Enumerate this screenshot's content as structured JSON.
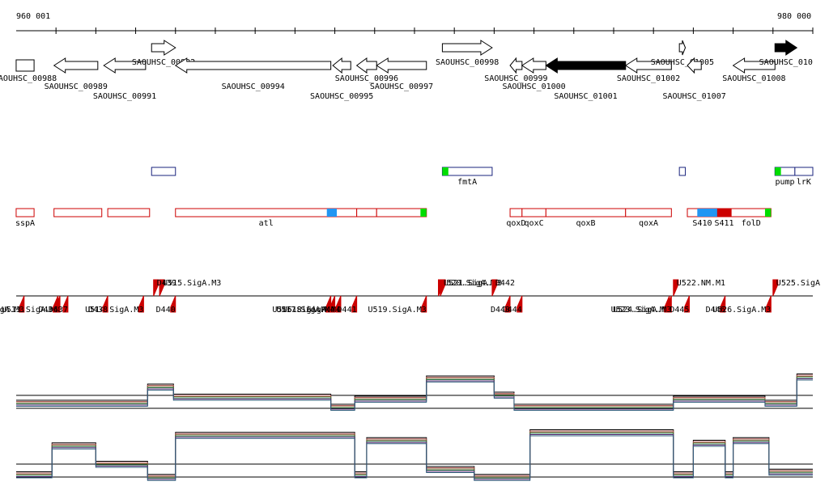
{
  "axis": {
    "start_label": "960 001",
    "end_label": "980 000",
    "start": 960001,
    "end": 980000
  },
  "colors": {
    "gene_fill": "#ffffff",
    "gene_stroke": "#000000",
    "gene_highlight": "#000000",
    "feature_blue": "#1a237e",
    "feature_red": "#cc0000",
    "feature_green": "#00dd00",
    "feature_cyan": "#2196f3",
    "tick_mark": "#b33a3a",
    "promoter": "#cc0000",
    "coverage_line": "#000000"
  },
  "genes": [
    {
      "name": "SAOUHSC_00988",
      "start": 960000,
      "end": 960450,
      "strand": "none",
      "filled": false
    },
    {
      "name": "SAOUHSC_00989",
      "start": 960950,
      "end": 962050,
      "strand": "-",
      "filled": false
    },
    {
      "name": "SAOUHSC_00991",
      "start": 962200,
      "end": 963250,
      "strand": "-",
      "filled": false
    },
    {
      "name": "SAOUHSC_00992",
      "start": 963400,
      "end": 964000,
      "strand": "+",
      "filled": false
    },
    {
      "name": "SAOUHSC_00994",
      "start": 964000,
      "end": 967900,
      "strand": "-",
      "filled": false
    },
    {
      "name": "SAOUHSC_00995",
      "start": 967950,
      "end": 968400,
      "strand": "-",
      "filled": false
    },
    {
      "name": "SAOUHSC_00996",
      "start": 968550,
      "end": 969050,
      "strand": "-",
      "filled": false
    },
    {
      "name": "SAOUHSC_00997",
      "start": 969050,
      "end": 970300,
      "strand": "-",
      "filled": false
    },
    {
      "name": "SAOUHSC_00998",
      "start": 970700,
      "end": 971950,
      "strand": "+",
      "filled": false
    },
    {
      "name": "SAOUHSC_00999",
      "start": 972400,
      "end": 972700,
      "strand": "-",
      "filled": false
    },
    {
      "name": "SAOUHSC_01000",
      "start": 972700,
      "end": 973300,
      "strand": "-",
      "filled": false
    },
    {
      "name": "SAOUHSC_01001",
      "start": 973300,
      "end": 975300,
      "strand": "-",
      "filled": true
    },
    {
      "name": "SAOUHSC_01002",
      "start": 975300,
      "end": 976450,
      "strand": "-",
      "filled": false
    },
    {
      "name": "SAOUHSC_01005",
      "start": 976650,
      "end": 976800,
      "strand": "+",
      "filled": false
    },
    {
      "name": "SAOUHSC_01007",
      "start": 976850,
      "end": 977200,
      "strand": "-",
      "filled": false
    },
    {
      "name": "SAOUHSC_01008",
      "start": 978000,
      "end": 979050,
      "strand": "-",
      "filled": false
    },
    {
      "name": "SAOUHSC_010",
      "start": 979050,
      "end": 979600,
      "strand": "+",
      "filled": true
    }
  ],
  "features_blue": [
    {
      "name": "",
      "start": 963400,
      "end": 964000
    },
    {
      "name": "fmtA",
      "start": 970700,
      "end": 971950
    },
    {
      "name": "",
      "start": 976650,
      "end": 976800
    },
    {
      "name": "pump",
      "start": 979050,
      "end": 979550
    },
    {
      "name": "lrK",
      "start": 979550,
      "end": 980000
    }
  ],
  "features_red": [
    {
      "name": "sspA",
      "start": 960000,
      "end": 960450
    },
    {
      "name": "",
      "start": 960950,
      "end": 962150
    },
    {
      "name": "",
      "start": 962300,
      "end": 963350
    },
    {
      "name": "atl",
      "start": 964000,
      "end": 968550
    },
    {
      "name": "",
      "start": 968550,
      "end": 969050
    },
    {
      "name": "",
      "start": 969050,
      "end": 970300
    },
    {
      "name": "qoxD",
      "start": 972400,
      "end": 972700
    },
    {
      "name": "qoxC",
      "start": 972700,
      "end": 973300
    },
    {
      "name": "qoxB",
      "start": 973300,
      "end": 975300
    },
    {
      "name": "qoxA",
      "start": 975300,
      "end": 976450
    },
    {
      "name": "S410",
      "start": 976850,
      "end": 977600
    },
    {
      "name": "S411",
      "start": 977600,
      "end": 977950
    },
    {
      "name": "folD",
      "start": 977950,
      "end": 978950
    }
  ],
  "feature_accents": [
    {
      "start": 967800,
      "end": 968050,
      "color": "cyan"
    },
    {
      "start": 970150,
      "end": 970300,
      "color": "green"
    },
    {
      "start": 970700,
      "end": 970850,
      "color": "green"
    },
    {
      "start": 977100,
      "end": 977600,
      "color": "cyan"
    },
    {
      "start": 977600,
      "end": 977950,
      "color": "red"
    },
    {
      "start": 978800,
      "end": 978950,
      "color": "green"
    },
    {
      "start": 979050,
      "end": 979200,
      "color": "green"
    }
  ],
  "promoters_top": [
    {
      "name": "U515.SigA.M3",
      "pos": 963600
    },
    {
      "name": "D439",
      "pos": 963450
    },
    {
      "name": "U520.SigA.M3",
      "pos": 970600
    },
    {
      "name": "U521.SigA.M3",
      "pos": 970650
    },
    {
      "name": "D442",
      "pos": 971950
    },
    {
      "name": "U522.NM.M1",
      "pos": 976500
    },
    {
      "name": "U525.SigA",
      "pos": 979000
    }
  ],
  "promoters_bottom": [
    {
      "name": "SigA.M3",
      "pos": 960200
    },
    {
      "name": "U513.SigA.M3",
      "pos": 961100
    },
    {
      "name": "D436",
      "pos": 961050
    },
    {
      "name": "D437",
      "pos": 961300
    },
    {
      "name": "U514.SigA.M3",
      "pos": 963200
    },
    {
      "name": "D438",
      "pos": 962300
    },
    {
      "name": "D440",
      "pos": 964000
    },
    {
      "name": "U516.SigA.M4",
      "pos": 967900
    },
    {
      "name": "U517.SigA.M4",
      "pos": 968000
    },
    {
      "name": "U518.SigA.M4",
      "pos": 968150
    },
    {
      "name": "D441",
      "pos": 968550
    },
    {
      "name": "U519.SigA.M3",
      "pos": 970300
    },
    {
      "name": "D443",
      "pos": 972400
    },
    {
      "name": "D444",
      "pos": 972700
    },
    {
      "name": "U523.SigA.M3",
      "pos": 976400
    },
    {
      "name": "U524.SigA.M3",
      "pos": 976450
    },
    {
      "name": "D445",
      "pos": 976900
    },
    {
      "name": "D446",
      "pos": 977800
    },
    {
      "name": "U526.SigA.M3",
      "pos": 978950
    }
  ],
  "coverage_upper": [
    {
      "start": 960000,
      "end": 963300,
      "level": 0.2
    },
    {
      "start": 963300,
      "end": 963950,
      "level": 0.6
    },
    {
      "start": 963950,
      "end": 967900,
      "level": 0.35
    },
    {
      "start": 967900,
      "end": 968500,
      "level": 0.1
    },
    {
      "start": 968500,
      "end": 970300,
      "level": 0.3
    },
    {
      "start": 970300,
      "end": 972000,
      "level": 0.8
    },
    {
      "start": 972000,
      "end": 972500,
      "level": 0.4
    },
    {
      "start": 972500,
      "end": 976500,
      "level": 0.1
    },
    {
      "start": 976500,
      "end": 978800,
      "level": 0.3
    },
    {
      "start": 978800,
      "end": 979600,
      "level": 0.2
    },
    {
      "start": 979600,
      "end": 980000,
      "level": 0.85
    }
  ],
  "coverage_lower": [
    {
      "start": 960000,
      "end": 960900,
      "level": 0.1
    },
    {
      "start": 960900,
      "end": 962000,
      "level": 0.65
    },
    {
      "start": 962000,
      "end": 963300,
      "level": 0.3
    },
    {
      "start": 963300,
      "end": 964000,
      "level": 0.05
    },
    {
      "start": 964000,
      "end": 968500,
      "level": 0.85
    },
    {
      "start": 968500,
      "end": 968800,
      "level": 0.1
    },
    {
      "start": 968800,
      "end": 970300,
      "level": 0.75
    },
    {
      "start": 970300,
      "end": 971500,
      "level": 0.2
    },
    {
      "start": 971500,
      "end": 972900,
      "level": 0.05
    },
    {
      "start": 972900,
      "end": 976500,
      "level": 0.9
    },
    {
      "start": 976500,
      "end": 977000,
      "level": 0.1
    },
    {
      "start": 977000,
      "end": 977800,
      "level": 0.7
    },
    {
      "start": 977800,
      "end": 978000,
      "level": 0.1
    },
    {
      "start": 978000,
      "end": 978900,
      "level": 0.75
    },
    {
      "start": 978900,
      "end": 980000,
      "level": 0.15
    }
  ]
}
